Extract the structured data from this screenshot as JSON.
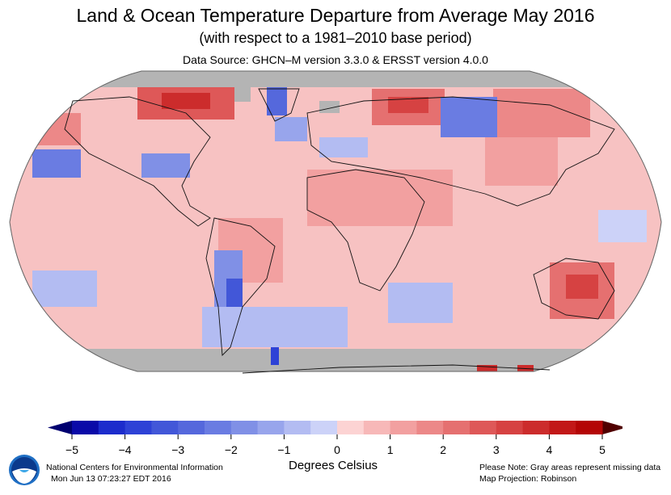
{
  "title": "Land & Ocean Temperature Departure from Average May 2016",
  "subtitle": "(with respect to a 1981–2010 base period)",
  "source": "Data Source: GHCN–M version 3.3.0 & ERSST version 4.0.0",
  "legend": {
    "units": "Degrees Celsius",
    "ticks": [
      "−5",
      "−4",
      "−3",
      "−2",
      "−1",
      "0",
      "1",
      "2",
      "3",
      "4",
      "5"
    ],
    "range": [
      -5,
      5
    ],
    "step": 0.5,
    "colors": [
      "#0a0aa8",
      "#1c2ccc",
      "#2e42d6",
      "#4257d8",
      "#5568dc",
      "#6a7ce2",
      "#8090e6",
      "#98a5ec",
      "#b3bcf2",
      "#ccd2f8",
      "#fcd3d3",
      "#f7b8b8",
      "#f2a0a0",
      "#ec8888",
      "#e57070",
      "#de5858",
      "#d64242",
      "#cc2c2c",
      "#c21818",
      "#b40606"
    ],
    "under_color": "#000070",
    "over_color": "#500000",
    "missing_color": "#b4b4b4"
  },
  "footer": {
    "org": "National Centers for Environmental Information",
    "timestamp": "Mon Jun 13 07:23:27 EDT 2016",
    "note": "Please Note: Gray areas represent missing data",
    "projection": "Map Projection: Robinson",
    "logo_text": "noaa"
  }
}
